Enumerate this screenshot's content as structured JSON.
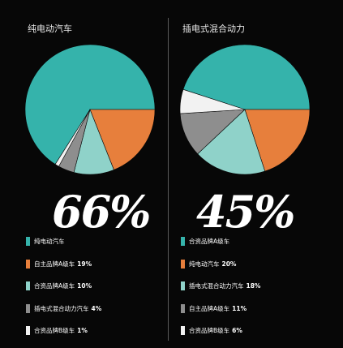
{
  "colors": {
    "background": "#070707",
    "teal": "#35b3ab",
    "orange": "#e77f3c",
    "light_teal": "#8fd2c9",
    "gray": "#8e8e8e",
    "white": "#f2f2f2"
  },
  "chart_data": [
    {
      "type": "pie",
      "title": "纯电动汽车",
      "headline": "66%",
      "series": [
        {
          "label": "纯电动汽车",
          "value_text": "",
          "value": 66,
          "color": "#35b3ab"
        },
        {
          "label": "自主品牌A级车",
          "value_text": "19%",
          "value": 19,
          "color": "#e77f3c"
        },
        {
          "label": "合资品牌A级车",
          "value_text": "10%",
          "value": 10,
          "color": "#8fd2c9"
        },
        {
          "label": "插电式混合动力汽车",
          "value_text": "4%",
          "value": 4,
          "color": "#8e8e8e"
        },
        {
          "label": "合资品牌B级车",
          "value_text": "1%",
          "value": 1,
          "color": "#f2f2f2"
        }
      ]
    },
    {
      "type": "pie",
      "title": "插电式混合动力",
      "headline": "45%",
      "series": [
        {
          "label": "合资品牌A级车",
          "value_text": "",
          "value": 45,
          "color": "#35b3ab"
        },
        {
          "label": "纯电动汽车",
          "value_text": "20%",
          "value": 20,
          "color": "#e77f3c"
        },
        {
          "label": "插电式混合动力汽车",
          "value_text": "18%",
          "value": 18,
          "color": "#8fd2c9"
        },
        {
          "label": "自主品牌A级车",
          "value_text": "11%",
          "value": 11,
          "color": "#8e8e8e"
        },
        {
          "label": "合资品牌B级车",
          "value_text": "6%",
          "value": 6,
          "color": "#f2f2f2"
        }
      ]
    }
  ]
}
